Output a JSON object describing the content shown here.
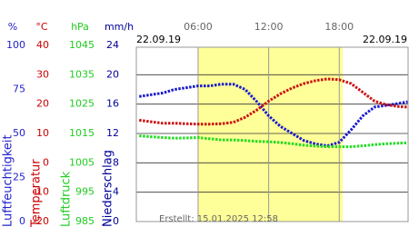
{
  "chart_data": {
    "type": "line",
    "date_left": "22.09.19",
    "date_right": "22.09.19",
    "footer": "Erstellt: 15.01.2025 12:58",
    "xlim": [
      0.75,
      23.85
    ],
    "xticks": [
      {
        "value": 6,
        "label": "06:00"
      },
      {
        "value": 12,
        "label": "12:00"
      },
      {
        "value": 18,
        "label": "18:00"
      }
    ],
    "daylight": [
      6,
      18.3
    ],
    "daylight_color": "#ffff99",
    "grid": true,
    "axes": [
      {
        "unit": "%",
        "label": "Luftfeuchtigkeit",
        "color": "#2222cc",
        "ylim": [
          0,
          100
        ],
        "yticks": [
          100,
          75,
          50,
          25,
          0
        ]
      },
      {
        "unit": "°C",
        "label": "Temperatur",
        "color": "#cc0000",
        "ylim": [
          -20,
          40
        ],
        "yticks": [
          40,
          30,
          20,
          10,
          0,
          -10,
          -20
        ]
      },
      {
        "unit": "hPa",
        "label": "Luftdruck",
        "color": "#22cc22",
        "ylim": [
          985,
          1045
        ],
        "yticks": [
          1045,
          1035,
          1025,
          1015,
          1005,
          995,
          985
        ]
      },
      {
        "unit": "mm/h",
        "label": "Niederschlag",
        "color": "#000099",
        "ylim": [
          0,
          24
        ],
        "yticks": [
          24,
          20,
          16,
          12,
          8,
          4,
          0
        ]
      }
    ],
    "x": [
      1,
      2,
      3,
      4,
      5,
      6,
      7,
      8,
      9,
      10,
      11,
      12,
      13,
      14,
      15,
      16,
      17,
      18,
      19,
      20,
      21,
      22,
      23,
      23.8
    ],
    "series": [
      {
        "axis": 0,
        "color": "#1a1acc",
        "values": [
          71,
          72,
          73,
          75,
          76,
          77,
          77,
          78,
          78,
          75,
          68,
          60,
          54,
          50,
          46,
          44,
          43,
          45,
          52,
          60,
          65,
          66,
          67,
          68
        ]
      },
      {
        "axis": 1,
        "color": "#cc1111",
        "values": [
          14.5,
          14,
          13.5,
          13.5,
          13.3,
          13.2,
          13.2,
          13.3,
          13.8,
          15.5,
          18,
          21,
          23.5,
          25.5,
          27,
          28,
          28.6,
          28.3,
          27,
          24,
          21,
          19.8,
          19.2,
          19
        ]
      },
      {
        "axis": 2,
        "color": "#22dd22",
        "values": [
          1014.2,
          1013.9,
          1013.6,
          1013.4,
          1013.5,
          1013.6,
          1013.2,
          1012.8,
          1012.8,
          1012.6,
          1012.3,
          1012.2,
          1011.9,
          1011.5,
          1011.0,
          1010.7,
          1010.5,
          1010.5,
          1010.5,
          1010.8,
          1011.2,
          1011.5,
          1011.7,
          1011.8
        ]
      }
    ]
  }
}
